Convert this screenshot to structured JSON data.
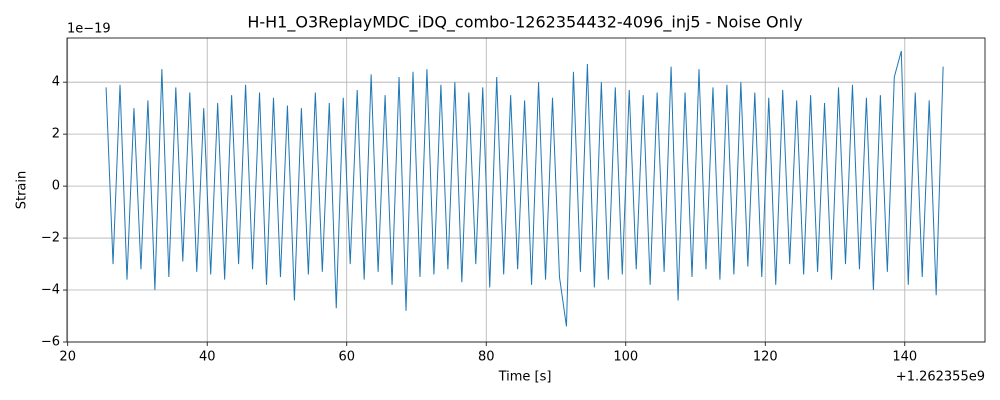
{
  "chart_data": {
    "type": "line",
    "title": "H-H1_O3ReplayMDC_iDQ_combo-1262354432-4096_inj5 - Noise Only",
    "x_label": "Time [s]",
    "y_label": "Strain",
    "x_offset_label": "+1.262355e9",
    "y_offset_label": "1e−19",
    "color": "#1f77b4",
    "grid": true,
    "xlim": [
      19.9,
      151.5
    ],
    "xticks": [
      20,
      40,
      60,
      80,
      100,
      120,
      140
    ],
    "ylim": [
      -6,
      5.7
    ],
    "yticks": [
      {
        "value": -6,
        "label": "−6"
      },
      {
        "value": -4,
        "label": "−4"
      },
      {
        "value": -2,
        "label": "−2"
      },
      0,
      2,
      4
    ],
    "x": [
      25.5,
      26.5,
      27.5,
      28.5,
      29.5,
      30.5,
      31.5,
      32.5,
      33.5,
      34.5,
      35.5,
      36.5,
      37.5,
      38.5,
      39.5,
      40.5,
      41.5,
      42.5,
      43.5,
      44.5,
      45.5,
      46.5,
      47.5,
      48.5,
      49.5,
      50.5,
      51.5,
      52.5,
      53.5,
      54.5,
      55.5,
      56.5,
      57.5,
      58.5,
      59.5,
      60.5,
      61.5,
      62.5,
      63.5,
      64.5,
      65.5,
      66.5,
      67.5,
      68.5,
      69.5,
      70.5,
      71.5,
      72.5,
      73.5,
      74.5,
      75.5,
      76.5,
      77.5,
      78.5,
      79.5,
      80.5,
      81.5,
      82.5,
      83.5,
      84.5,
      85.5,
      86.5,
      87.5,
      88.5,
      89.5,
      90.5,
      91.5,
      92.5,
      93.5,
      94.5,
      95.5,
      96.5,
      97.5,
      98.5,
      99.5,
      100.5,
      101.5,
      102.5,
      103.5,
      104.5,
      105.5,
      106.5,
      107.5,
      108.5,
      109.5,
      110.5,
      111.5,
      112.5,
      113.5,
      114.5,
      115.5,
      116.5,
      117.5,
      118.5,
      119.5,
      120.5,
      121.5,
      122.5,
      123.5,
      124.5,
      125.5,
      126.5,
      127.5,
      128.5,
      129.5,
      130.5,
      131.5,
      132.5,
      133.5,
      134.5,
      135.5,
      136.5,
      137.5,
      138.5,
      139.5,
      140.5,
      141.5,
      142.5,
      143.5,
      144.5,
      145.5
    ],
    "values": [
      3.8,
      -3.0,
      3.9,
      -3.6,
      3.0,
      -3.2,
      3.3,
      -4.0,
      4.5,
      -3.5,
      3.8,
      -2.9,
      3.6,
      -3.3,
      3.0,
      -3.4,
      3.2,
      -3.6,
      3.5,
      -3.0,
      3.9,
      -3.2,
      3.6,
      -3.8,
      3.4,
      -3.5,
      3.1,
      -4.4,
      3.0,
      -3.4,
      3.6,
      -3.3,
      3.2,
      -4.7,
      3.4,
      -3.0,
      3.7,
      -3.6,
      4.3,
      -3.3,
      3.5,
      -3.8,
      4.2,
      -4.8,
      4.4,
      -3.5,
      4.5,
      -3.4,
      3.9,
      -3.2,
      4.0,
      -3.7,
      3.6,
      -3.0,
      3.8,
      -3.9,
      4.2,
      -3.4,
      3.5,
      -3.2,
      3.3,
      -3.8,
      4.0,
      -3.6,
      3.4,
      -3.5,
      -5.4,
      4.4,
      -3.3,
      4.7,
      -3.9,
      4.0,
      -3.6,
      3.8,
      -3.4,
      3.7,
      -3.2,
      3.5,
      -3.8,
      3.6,
      -3.3,
      4.6,
      -4.4,
      3.6,
      -3.5,
      4.5,
      -3.2,
      3.8,
      -3.6,
      3.9,
      -3.4,
      4.0,
      -3.1,
      3.6,
      -3.5,
      3.4,
      -3.8,
      3.7,
      -3.0,
      3.3,
      -3.4,
      3.5,
      -3.3,
      3.2,
      -3.6,
      3.8,
      -3.0,
      3.9,
      -3.2,
      3.4,
      -4.0,
      3.5,
      -3.3,
      4.2,
      5.2,
      -3.8,
      3.6,
      -3.5,
      3.3,
      -4.2,
      4.6
    ]
  }
}
